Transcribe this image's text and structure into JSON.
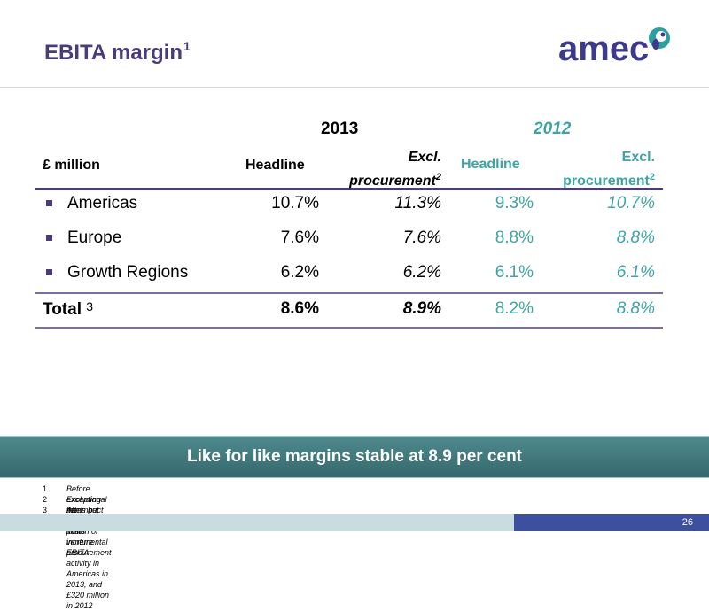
{
  "title": {
    "text": "EBITA margin",
    "sup": "1"
  },
  "logo": {
    "text": "amec"
  },
  "table": {
    "year_2013": "2013",
    "year_2012": "2012",
    "header": {
      "label": "£ million",
      "headline_2013": "Headline",
      "excl_2013_line1": "Excl.",
      "excl_2013_line2": "procurement",
      "excl_2013_sup": "2",
      "headline_2012": "Headline",
      "excl_2012_line1": "Excl.",
      "excl_2012_line2": "procurement",
      "excl_2012_sup": "2"
    },
    "rows": [
      {
        "label": "Americas",
        "h2013": "10.7%",
        "e2013": "11.3%",
        "h2012": "9.3%",
        "e2012": "10.7%"
      },
      {
        "label": "Europe",
        "h2013": "7.6%",
        "e2013": "7.6%",
        "h2012": "8.8%",
        "e2012": "8.8%"
      },
      {
        "label": "Growth Regions",
        "h2013": "6.2%",
        "e2013": "6.2%",
        "h2012": "6.1%",
        "e2012": "6.1%"
      }
    ],
    "total": {
      "label": "Total",
      "note": "3",
      "h2013": "8.6%",
      "e2013": "8.9%",
      "h2012": "8.2%",
      "e2012": "8.8%"
    }
  },
  "banner": "Like for like margins stable at 8.9 per cent",
  "footnotes": [
    {
      "num": "1",
      "text": "Before exceptional items but including joint venture EBITA"
    },
    {
      "num": "2",
      "text": "Excluding the impact of £120 million of incremental procurement activity in Americas in 2013, and £320 million in 2012"
    },
    {
      "num": "3",
      "text": "After corporate costs"
    }
  ],
  "page_number": "26",
  "colors": {
    "brand_purple": "#4a3b7a",
    "teal": "#3fa3a3",
    "banner": "#3f7b7f",
    "footer_blue": "#3d50a0"
  }
}
